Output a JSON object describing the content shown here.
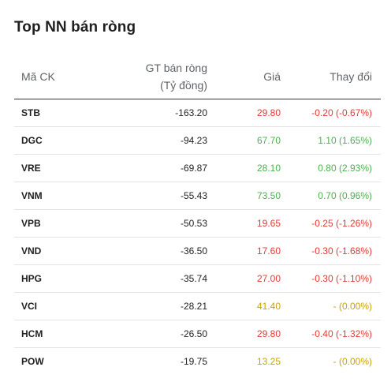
{
  "title": "Top NN bán ròng",
  "headers": {
    "code": "Mã CK",
    "value_line1": "GT bán ròng",
    "value_line2": "(Tỷ đồng)",
    "price": "Giá",
    "change": "Thay đổi"
  },
  "colors": {
    "down": "#e53935",
    "up": "#4caf50",
    "unchanged": "#c9a300"
  },
  "rows": [
    {
      "code": "STB",
      "value": "-163.20",
      "price": "29.80",
      "change": "-0.20 (-0.67%)",
      "status": "down"
    },
    {
      "code": "DGC",
      "value": "-94.23",
      "price": "67.70",
      "change": "1.10 (1.65%)",
      "status": "up"
    },
    {
      "code": "VRE",
      "value": "-69.87",
      "price": "28.10",
      "change": "0.80 (2.93%)",
      "status": "up"
    },
    {
      "code": "VNM",
      "value": "-55.43",
      "price": "73.50",
      "change": "0.70 (0.96%)",
      "status": "up"
    },
    {
      "code": "VPB",
      "value": "-50.53",
      "price": "19.65",
      "change": "-0.25 (-1.26%)",
      "status": "down"
    },
    {
      "code": "VND",
      "value": "-36.50",
      "price": "17.60",
      "change": "-0.30 (-1.68%)",
      "status": "down"
    },
    {
      "code": "HPG",
      "value": "-35.74",
      "price": "27.00",
      "change": "-0.30 (-1.10%)",
      "status": "down"
    },
    {
      "code": "VCI",
      "value": "-28.21",
      "price": "41.40",
      "change": "- (0.00%)",
      "status": "unchanged"
    },
    {
      "code": "HCM",
      "value": "-26.50",
      "price": "29.80",
      "change": "-0.40 (-1.32%)",
      "status": "down"
    },
    {
      "code": "POW",
      "value": "-19.75",
      "price": "13.25",
      "change": "- (0.00%)",
      "status": "unchanged"
    }
  ]
}
